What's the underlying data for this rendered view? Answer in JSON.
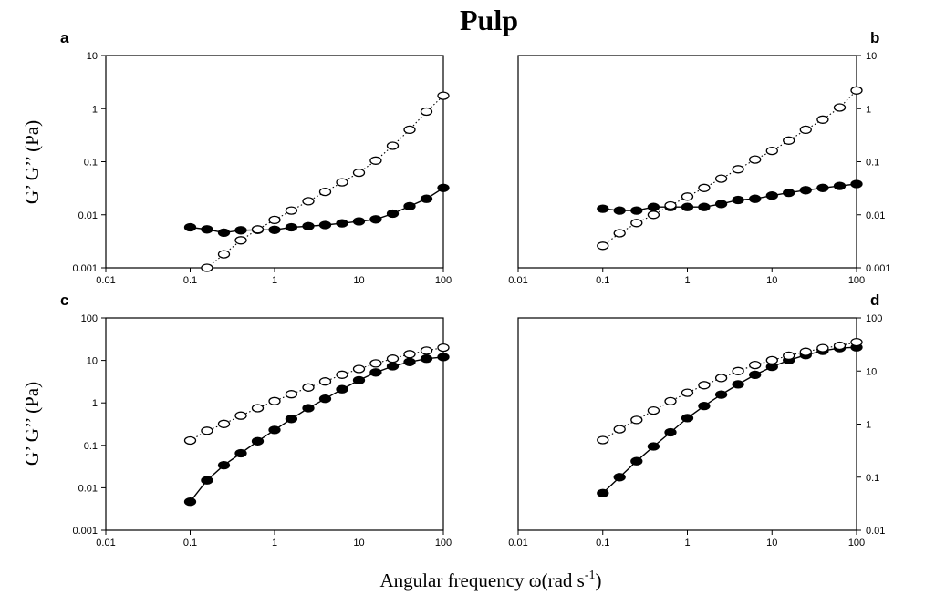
{
  "title": "Pulp",
  "ylabel": "G’ G’’ (Pa)",
  "xlabel": "Angular frequency ω(rad s",
  "xlabel_sup": "-1",
  "xlabel_end": ")",
  "chart_data": [
    {
      "panel": "a",
      "type": "scatter",
      "xscale": "log",
      "yscale": "log",
      "xlim": [
        0.01,
        100
      ],
      "ylim": [
        0.001,
        10
      ],
      "xticks": [
        "0.01",
        "0.1",
        "1",
        "10",
        "100"
      ],
      "yticks": [
        "0.001",
        "0.01",
        "0.1",
        "1",
        "10"
      ],
      "y_axis_side": "left",
      "series": [
        {
          "marker": "filled",
          "line": "solid",
          "x": [
            0.1,
            0.158,
            0.251,
            0.398,
            0.631,
            1,
            1.58,
            2.51,
            3.98,
            6.31,
            10,
            15.8,
            25.1,
            39.8,
            63.1,
            100
          ],
          "y": [
            0.0058,
            0.0053,
            0.0046,
            0.0051,
            0.0052,
            0.0052,
            0.0058,
            0.0061,
            0.0064,
            0.0069,
            0.0075,
            0.0082,
            0.0105,
            0.0145,
            0.02,
            0.032
          ]
        },
        {
          "marker": "open",
          "line": "dotted",
          "x": [
            0.158,
            0.251,
            0.398,
            0.631,
            1,
            1.58,
            2.51,
            3.98,
            6.31,
            10,
            15.8,
            25.1,
            39.8,
            63.1,
            100
          ],
          "y": [
            0.001,
            0.0018,
            0.0033,
            0.0053,
            0.008,
            0.012,
            0.018,
            0.027,
            0.041,
            0.062,
            0.105,
            0.2,
            0.4,
            0.88,
            1.75
          ]
        }
      ]
    },
    {
      "panel": "b",
      "type": "scatter",
      "xscale": "log",
      "yscale": "log",
      "xlim": [
        0.01,
        100
      ],
      "ylim": [
        0.001,
        10
      ],
      "xticks": [
        "0.01",
        "0.1",
        "1",
        "10",
        "100"
      ],
      "yticks": [
        "0.001",
        "0.01",
        "0.1",
        "1",
        "10"
      ],
      "y_axis_side": "right",
      "series": [
        {
          "marker": "filled",
          "line": "solid",
          "x": [
            0.1,
            0.158,
            0.251,
            0.398,
            0.631,
            1,
            1.58,
            2.51,
            3.98,
            6.31,
            10,
            15.8,
            25.1,
            39.8,
            63.1,
            100
          ],
          "y": [
            0.013,
            0.012,
            0.012,
            0.014,
            0.014,
            0.014,
            0.014,
            0.016,
            0.019,
            0.02,
            0.023,
            0.026,
            0.029,
            0.032,
            0.035,
            0.038
          ]
        },
        {
          "marker": "open",
          "line": "dotted",
          "x": [
            0.1,
            0.158,
            0.251,
            0.398,
            0.631,
            1,
            1.58,
            2.51,
            3.98,
            6.31,
            10,
            15.8,
            25.1,
            39.8,
            63.1,
            100
          ],
          "y": [
            0.0026,
            0.0045,
            0.007,
            0.01,
            0.015,
            0.022,
            0.032,
            0.048,
            0.072,
            0.11,
            0.16,
            0.25,
            0.4,
            0.62,
            1.05,
            2.2
          ]
        }
      ]
    },
    {
      "panel": "c",
      "type": "scatter",
      "xscale": "log",
      "yscale": "log",
      "xlim": [
        0.01,
        100
      ],
      "ylim": [
        0.001,
        100
      ],
      "xticks": [
        "0.01",
        "0.1",
        "1",
        "10",
        "100"
      ],
      "yticks": [
        "0.001",
        "0.01",
        "0.1",
        "1",
        "10",
        "100"
      ],
      "y_axis_side": "left",
      "series": [
        {
          "marker": "filled",
          "line": "solid",
          "x": [
            0.1,
            0.158,
            0.251,
            0.398,
            0.631,
            1,
            1.58,
            2.51,
            3.98,
            6.31,
            10,
            15.8,
            25.1,
            39.8,
            63.1,
            100
          ],
          "y": [
            0.0047,
            0.015,
            0.034,
            0.065,
            0.125,
            0.23,
            0.42,
            0.75,
            1.25,
            2.1,
            3.4,
            5.2,
            7.3,
            9.2,
            11,
            12
          ]
        },
        {
          "marker": "open",
          "line": "dotted",
          "x": [
            0.1,
            0.158,
            0.251,
            0.398,
            0.631,
            1,
            1.58,
            2.51,
            3.98,
            6.31,
            10,
            15.8,
            25.1,
            39.8,
            63.1,
            100
          ],
          "y": [
            0.13,
            0.22,
            0.32,
            0.5,
            0.75,
            1.1,
            1.6,
            2.3,
            3.2,
            4.6,
            6.3,
            8.5,
            11,
            14,
            17,
            20
          ]
        }
      ]
    },
    {
      "panel": "d",
      "type": "scatter",
      "xscale": "log",
      "yscale": "log",
      "xlim": [
        0.01,
        100
      ],
      "ylim": [
        0.01,
        100
      ],
      "xticks": [
        "0.01",
        "0.1",
        "1",
        "10",
        "100"
      ],
      "yticks": [
        "0.01",
        "0.1",
        "1",
        "10",
        "100"
      ],
      "y_axis_side": "right",
      "series": [
        {
          "marker": "filled",
          "line": "solid",
          "x": [
            0.1,
            0.158,
            0.251,
            0.398,
            0.631,
            1,
            1.58,
            2.51,
            3.98,
            6.31,
            10,
            15.8,
            25.1,
            39.8,
            63.1,
            100
          ],
          "y": [
            0.05,
            0.1,
            0.2,
            0.38,
            0.7,
            1.3,
            2.2,
            3.6,
            5.6,
            8.5,
            12,
            16,
            20,
            24,
            27,
            28
          ]
        },
        {
          "marker": "open",
          "line": "dotted",
          "x": [
            0.1,
            0.158,
            0.251,
            0.398,
            0.631,
            1,
            1.58,
            2.51,
            3.98,
            6.31,
            10,
            15.8,
            25.1,
            39.8,
            63.1,
            100
          ],
          "y": [
            0.5,
            0.8,
            1.2,
            1.8,
            2.7,
            3.9,
            5.4,
            7.4,
            10,
            13,
            16,
            19.5,
            23,
            27,
            30,
            35
          ]
        }
      ]
    }
  ]
}
